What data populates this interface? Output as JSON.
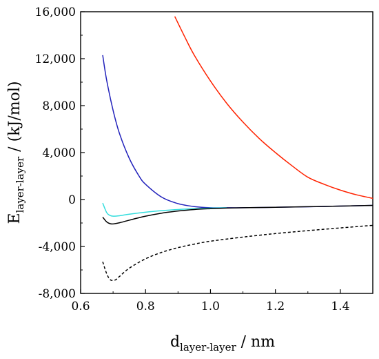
{
  "chart_data": {
    "type": "line",
    "title": "",
    "xlabel": {
      "main": "d",
      "sub": "layer-layer",
      "rest": " / nm"
    },
    "ylabel": {
      "main": "E",
      "sub": "layer-layer",
      "rest": " / (kJ/mol)"
    },
    "xlim": [
      0.6,
      1.5
    ],
    "ylim": [
      -8000,
      16000
    ],
    "xticks": [
      0.6,
      0.8,
      1.0,
      1.2,
      1.4
    ],
    "xtick_labels": [
      "0.6",
      "0.8",
      "1.0",
      "1.2",
      "1.4"
    ],
    "yticks": [
      -8000,
      -4000,
      0,
      4000,
      8000,
      12000,
      16000
    ],
    "ytick_labels": [
      "-8,000",
      "-4,000",
      "0",
      "4,000",
      "8,000",
      "12,000",
      "16,000"
    ],
    "grid": false,
    "legend": "none",
    "series": [
      {
        "color": "#ff2200",
        "dash": "solid",
        "x": [
          0.89,
          0.92,
          0.95,
          1.0,
          1.05,
          1.1,
          1.15,
          1.2,
          1.25,
          1.3,
          1.35,
          1.4,
          1.45,
          1.5
        ],
        "y": [
          15600,
          13900,
          12300,
          10100,
          8200,
          6600,
          5200,
          4000,
          2900,
          1900,
          1300,
          800,
          400,
          100
        ]
      },
      {
        "color": "#2222bb",
        "dash": "solid",
        "x": [
          0.668,
          0.68,
          0.7,
          0.72,
          0.75,
          0.78,
          0.8,
          0.85,
          0.9,
          0.95,
          1.0,
          1.05,
          1.1,
          1.2,
          1.3,
          1.4,
          1.5
        ],
        "y": [
          12300,
          10200,
          7600,
          5600,
          3500,
          2000,
          1300,
          200,
          -350,
          -600,
          -700,
          -700,
          -700,
          -660,
          -620,
          -560,
          -500
        ]
      },
      {
        "color": "#33dddd",
        "dash": "solid",
        "x": [
          0.668,
          0.68,
          0.69,
          0.7,
          0.72,
          0.75,
          0.8,
          0.85,
          0.9,
          0.95,
          1.0,
          1.05
        ],
        "y": [
          -300,
          -1100,
          -1350,
          -1420,
          -1380,
          -1250,
          -1080,
          -950,
          -850,
          -780,
          -730,
          -700
        ]
      },
      {
        "color": "#000000",
        "dash": "solid",
        "x": [
          0.668,
          0.68,
          0.69,
          0.7,
          0.72,
          0.75,
          0.8,
          0.85,
          0.9,
          0.95,
          1.0,
          1.05,
          1.1,
          1.2,
          1.3,
          1.4,
          1.5
        ],
        "y": [
          -1500,
          -1900,
          -2050,
          -2080,
          -1980,
          -1760,
          -1420,
          -1160,
          -980,
          -850,
          -780,
          -730,
          -700,
          -660,
          -610,
          -560,
          -500
        ]
      },
      {
        "color": "#000000",
        "dash": "dashed",
        "x": [
          0.668,
          0.68,
          0.69,
          0.7,
          0.71,
          0.72,
          0.75,
          0.8,
          0.85,
          0.9,
          0.95,
          1.0,
          1.1,
          1.2,
          1.3,
          1.4,
          1.5
        ],
        "y": [
          -5300,
          -6300,
          -6800,
          -6900,
          -6800,
          -6550,
          -5850,
          -5050,
          -4500,
          -4100,
          -3800,
          -3550,
          -3200,
          -2900,
          -2650,
          -2420,
          -2200
        ]
      }
    ]
  }
}
